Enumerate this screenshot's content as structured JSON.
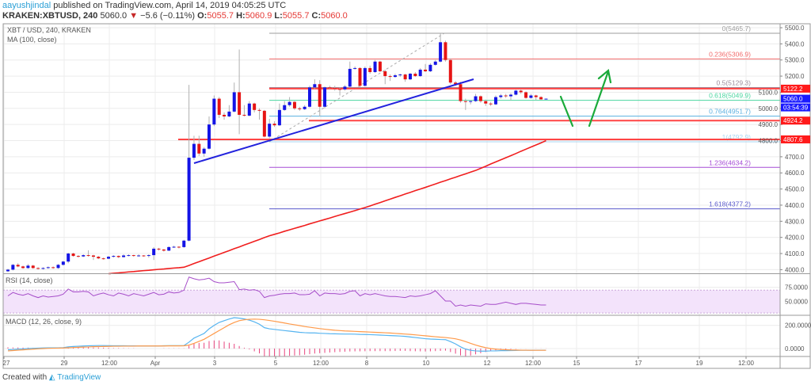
{
  "header": {
    "author": "aayushjindal",
    "published": "published on TradingView.com, April 14, 2019 04:05:25 UTC",
    "symbol": "KRAKEN:XBTUSD, 240",
    "last": "5060.0",
    "change": "−5.6 (−0.11%)",
    "o_label": "O:",
    "o": "5055.7",
    "h_label": "H:",
    "h": "5060.9",
    "l_label": "L:",
    "l": "5055.7",
    "c_label": "C:",
    "c": "5060.0",
    "down_icon": "triangle-down-icon"
  },
  "panes": {
    "main_title": "XBT / USD, 240, KRAKEN",
    "ma_title": "MA (100, close)",
    "rsi_title": "RSI (14, close)",
    "macd_title": "MACD (12, 26, close, 9)"
  },
  "colors": {
    "up": "#1414e6",
    "down": "#e61414",
    "ma": "#f01e1e",
    "trendline": "#2222dd",
    "arrows": "#1aaa3a",
    "rsi": "#a64dc9",
    "rsi_band": "#f3e3fb",
    "macd": "#56b4f0",
    "signal": "#ff9a4a",
    "histogram": "#e8457f",
    "sr_line": "#ff4444"
  },
  "chart_data": {
    "type": "candlestick",
    "interval": "240",
    "price_axis": {
      "ticks": [
        4000,
        4100,
        4200,
        4300,
        4400,
        4500,
        4600,
        4700,
        4800,
        4900,
        5000,
        5100,
        5200,
        5300,
        5400,
        5500
      ],
      "range": [
        3970,
        5540
      ]
    },
    "time_axis": {
      "ticks": [
        "27",
        "29",
        "12:00",
        "Apr",
        "3",
        "5",
        "12:00",
        "8",
        "10",
        "12",
        "12:00",
        "15",
        "17",
        "19",
        "12:00"
      ]
    },
    "ohlc": [
      [
        3990,
        4005,
        3985,
        4000
      ],
      [
        4000,
        4035,
        3995,
        4030
      ],
      [
        4030,
        4040,
        4015,
        4020
      ],
      [
        4020,
        4025,
        4005,
        4010
      ],
      [
        4010,
        4035,
        4005,
        4025
      ],
      [
        4025,
        4030,
        4005,
        4010
      ],
      [
        4010,
        4015,
        4000,
        4005
      ],
      [
        4005,
        4015,
        4000,
        4010
      ],
      [
        4010,
        4020,
        4005,
        4015
      ],
      [
        4015,
        4020,
        4005,
        4010
      ],
      [
        4010,
        4035,
        4005,
        4030
      ],
      [
        4030,
        4055,
        4025,
        4050
      ],
      [
        4050,
        4105,
        4040,
        4100
      ],
      [
        4100,
        4105,
        4080,
        4085
      ],
      [
        4085,
        4090,
        4075,
        4082
      ],
      [
        4082,
        4095,
        4078,
        4090
      ],
      [
        4090,
        4120,
        4080,
        4088
      ],
      [
        4088,
        4092,
        4060,
        4080
      ],
      [
        4080,
        4085,
        4065,
        4070
      ],
      [
        4070,
        4075,
        4062,
        4068
      ],
      [
        4068,
        4085,
        4065,
        4080
      ],
      [
        4080,
        4090,
        4075,
        4085
      ],
      [
        4085,
        4088,
        4072,
        4078
      ],
      [
        4078,
        4095,
        4075,
        4088
      ],
      [
        4088,
        4095,
        4082,
        4090
      ],
      [
        4090,
        4092,
        4080,
        4085
      ],
      [
        4085,
        4095,
        4080,
        4088
      ],
      [
        4088,
        4090,
        4080,
        4085
      ],
      [
        4085,
        4095,
        4075,
        4090
      ],
      [
        4090,
        4140,
        4060,
        4130
      ],
      [
        4130,
        4135,
        4118,
        4125
      ],
      [
        4125,
        4128,
        4112,
        4118
      ],
      [
        4118,
        4145,
        4115,
        4140
      ],
      [
        4140,
        4148,
        4135,
        4142
      ],
      [
        4142,
        4145,
        4132,
        4140
      ],
      [
        4140,
        4185,
        4135,
        4180
      ],
      [
        4180,
        5146,
        4175,
        4694
      ],
      [
        4694,
        4830,
        4680,
        4780
      ],
      [
        4780,
        4830,
        4705,
        4720
      ],
      [
        4720,
        4760,
        4700,
        4750
      ],
      [
        4750,
        4950,
        4745,
        4900
      ],
      [
        4900,
        5080,
        4890,
        5060
      ],
      [
        5060,
        5070,
        4940,
        4960
      ],
      [
        4960,
        4975,
        4930,
        4950
      ],
      [
        4950,
        5020,
        4945,
        4980
      ],
      [
        4980,
        5160,
        4975,
        5100
      ],
      [
        5100,
        5365,
        4840,
        4960
      ],
      [
        4960,
        5020,
        4950,
        4955
      ],
      [
        4955,
        5045,
        4950,
        5030
      ],
      [
        5030,
        5035,
        4975,
        4990
      ],
      [
        4990,
        5000,
        4930,
        4985
      ],
      [
        4985,
        4990,
        4820,
        4825
      ],
      [
        4825,
        4935,
        4815,
        4905
      ],
      [
        4905,
        4920,
        4885,
        4895
      ],
      [
        4895,
        5030,
        4890,
        4990
      ],
      [
        4990,
        5045,
        4985,
        5020
      ],
      [
        5020,
        5070,
        5010,
        5040
      ],
      [
        5040,
        5045,
        4990,
        5000
      ],
      [
        5000,
        5010,
        4985,
        4995
      ],
      [
        4995,
        5020,
        4990,
        5010
      ],
      [
        5010,
        5140,
        5005,
        5130
      ],
      [
        5130,
        5180,
        5120,
        5150
      ],
      [
        5150,
        5175,
        4950,
        5010
      ],
      [
        5010,
        5135,
        5000,
        5130
      ],
      [
        5130,
        5140,
        5115,
        5125
      ],
      [
        5125,
        5140,
        5110,
        5120
      ],
      [
        5120,
        5130,
        5080,
        5118
      ],
      [
        5118,
        5145,
        5110,
        5135
      ],
      [
        5135,
        5290,
        5130,
        5245
      ],
      [
        5245,
        5260,
        5240,
        5250
      ],
      [
        5250,
        5255,
        5130,
        5140
      ],
      [
        5140,
        5260,
        5135,
        5250
      ],
      [
        5250,
        5265,
        5215,
        5225
      ],
      [
        5225,
        5300,
        5220,
        5290
      ],
      [
        5290,
        5295,
        5225,
        5230
      ],
      [
        5230,
        5240,
        5150,
        5200
      ],
      [
        5200,
        5210,
        5170,
        5195
      ],
      [
        5195,
        5215,
        5190,
        5205
      ],
      [
        5205,
        5215,
        5195,
        5210
      ],
      [
        5210,
        5215,
        5165,
        5180
      ],
      [
        5180,
        5220,
        5175,
        5215
      ],
      [
        5215,
        5225,
        5195,
        5200
      ],
      [
        5200,
        5250,
        5195,
        5240
      ],
      [
        5240,
        5275,
        5225,
        5230
      ],
      [
        5230,
        5280,
        5225,
        5270
      ],
      [
        5270,
        5300,
        5265,
        5290
      ],
      [
        5290,
        5465,
        5285,
        5410
      ],
      [
        5410,
        5420,
        5290,
        5300
      ],
      [
        5300,
        5310,
        5150,
        5160
      ],
      [
        5160,
        5170,
        5140,
        5150
      ],
      [
        5150,
        5165,
        5035,
        5045
      ],
      [
        5045,
        5060,
        4990,
        5040
      ],
      [
        5040,
        5050,
        5025,
        5045
      ],
      [
        5045,
        5090,
        5040,
        5075
      ],
      [
        5075,
        5080,
        5035,
        5045
      ],
      [
        5045,
        5055,
        5015,
        5030
      ],
      [
        5030,
        5040,
        5015,
        5025
      ],
      [
        5025,
        5080,
        5020,
        5070
      ],
      [
        5070,
        5090,
        5060,
        5080
      ],
      [
        5080,
        5090,
        5065,
        5075
      ],
      [
        5075,
        5095,
        5050,
        5085
      ],
      [
        5085,
        5115,
        5080,
        5110
      ],
      [
        5110,
        5115,
        5090,
        5100
      ],
      [
        5100,
        5105,
        5060,
        5065
      ],
      [
        5065,
        5090,
        5060,
        5080
      ],
      [
        5080,
        5085,
        5050,
        5070
      ],
      [
        5070,
        5075,
        5055,
        5055.7
      ],
      [
        5055.7,
        5060.9,
        5055.7,
        5060
      ]
    ],
    "ma100": [
      null,
      null,
      null,
      null,
      null,
      null,
      null,
      null,
      null,
      null,
      null,
      null,
      null,
      null,
      null,
      null,
      null,
      null,
      null,
      null,
      3975,
      3978,
      3980,
      3983,
      3986,
      3988,
      3991,
      3994,
      3996,
      3999,
      4002,
      4004,
      4007,
      4010,
      4012,
      4015,
      4026,
      4038,
      4049,
      4061,
      4072,
      4084,
      4095,
      4107,
      4118,
      4130,
      4141,
      4153,
      4164,
      4176,
      4187,
      4199,
      4210,
      4219,
      4228,
      4238,
      4247,
      4256,
      4265,
      4274,
      4284,
      4293,
      4302,
      4311,
      4320,
      4330,
      4339,
      4348,
      4357,
      4366,
      4376,
      4385,
      4395,
      4406,
      4416,
      4427,
      4437,
      4448,
      4458,
      4469,
      4479,
      4490,
      4500,
      4510,
      4521,
      4531,
      4542,
      4552,
      4563,
      4573,
      4584,
      4594,
      4605,
      4615,
      4628,
      4641,
      4655,
      4668,
      4681,
      4694,
      4707,
      4720,
      4734,
      4747,
      4760,
      4773,
      4786,
      4800
    ],
    "fibonacci": [
      {
        "level": "0",
        "value": 5465.7,
        "color": "#9e9e9e"
      },
      {
        "level": "0.236",
        "value": 5306.9,
        "color": "#f26b6b"
      },
      {
        "level": "0.5",
        "value": 5129.3,
        "color": "#9c8c9c"
      },
      {
        "level": "0.618",
        "value": 5049.9,
        "color": "#4cd6a0"
      },
      {
        "level": "0.764",
        "value": 4951.7,
        "color": "#5ab0e0"
      },
      {
        "level": "1",
        "value": 4792.9,
        "color": "#a8d4f2"
      },
      {
        "level": "1.236",
        "value": 4634.2,
        "color": "#a64dd6"
      },
      {
        "level": "1.618",
        "value": 4377.2,
        "color": "#5a5acc"
      }
    ],
    "horizontal_lines": [
      5122.2,
      4924.2,
      4807.6
    ],
    "price_tags": [
      {
        "text": "5122.2",
        "value": 5122.2,
        "color": "#ff1a1a"
      },
      {
        "text": "5060.0",
        "value": 5060.0,
        "color": "#1a1aff"
      },
      {
        "text": "03:54:39",
        "value": 5030,
        "color": "#1a1aff"
      },
      {
        "text": "4924.2",
        "value": 4924.2,
        "color": "#ff1a1a"
      },
      {
        "text": "4807.6",
        "value": 4807.6,
        "color": "#ff1a1a"
      }
    ],
    "rsi": {
      "ticks": [
        "75.0000",
        "50.0000"
      ],
      "band": [
        30,
        70
      ],
      "values": [
        60,
        66,
        63,
        61,
        64,
        60,
        57,
        60,
        58,
        59,
        60,
        63,
        72,
        67,
        67,
        68,
        67,
        60,
        63,
        65,
        62,
        60,
        65,
        63,
        60,
        64,
        62,
        60,
        63,
        66,
        62,
        63,
        67,
        65,
        66,
        70,
        93,
        90,
        88,
        89,
        91,
        85,
        83,
        83,
        84,
        85,
        71,
        72,
        70,
        71,
        68,
        57,
        60,
        61,
        63,
        64,
        64,
        65,
        62,
        62,
        63,
        69,
        60,
        65,
        64,
        64,
        63,
        64,
        68,
        69,
        60,
        64,
        62,
        64,
        62,
        60,
        59,
        59,
        58,
        57,
        60,
        59,
        60,
        62,
        64,
        69,
        60,
        51,
        51,
        42,
        44,
        42,
        44,
        43,
        42,
        46,
        45,
        45,
        47,
        49,
        47,
        45,
        47,
        47,
        46,
        45,
        44,
        44
      ]
    },
    "macd": {
      "ticks": [
        "200.0000",
        "0.0000"
      ],
      "macd": [
        -10,
        -8,
        -5,
        -3,
        0,
        2,
        4,
        5,
        6,
        6,
        6,
        8,
        15,
        18,
        20,
        22,
        24,
        25,
        26,
        26,
        25,
        24,
        24,
        24,
        23,
        23,
        22,
        22,
        22,
        22,
        22,
        24,
        25,
        25,
        25,
        26,
        55,
        90,
        110,
        130,
        170,
        200,
        225,
        240,
        255,
        266,
        262,
        255,
        245,
        230,
        210,
        180,
        170,
        165,
        160,
        155,
        150,
        145,
        140,
        137,
        135,
        135,
        132,
        130,
        128,
        127,
        126,
        125,
        125,
        124,
        122,
        121,
        120,
        118,
        116,
        114,
        112,
        110,
        108,
        105,
        100,
        95,
        90,
        85,
        82,
        80,
        78,
        77,
        60,
        40,
        15,
        -5,
        -15,
        -20,
        -22,
        -22,
        -20,
        -20,
        -18,
        -18,
        -17,
        -16,
        -15,
        -15,
        -15,
        -14,
        -14,
        -14
      ],
      "signal": [
        -20,
        -17,
        -14,
        -11,
        -8,
        -5,
        -2,
        0,
        2,
        3,
        4,
        5,
        7,
        9,
        11,
        13,
        14,
        16,
        17,
        18,
        19,
        20,
        20,
        21,
        21,
        21,
        22,
        22,
        22,
        22,
        22,
        22,
        23,
        23,
        23,
        24,
        30,
        45,
        62,
        80,
        105,
        130,
        155,
        180,
        205,
        225,
        240,
        248,
        252,
        254,
        252,
        248,
        242,
        235,
        228,
        220,
        212,
        205,
        198,
        190,
        184,
        178,
        172,
        167,
        162,
        158,
        155,
        152,
        150,
        148,
        146,
        144,
        142,
        140,
        138,
        136,
        134,
        131,
        128,
        125,
        122,
        118,
        114,
        110,
        106,
        102,
        98,
        95,
        90,
        84,
        74,
        60,
        45,
        30,
        18,
        8,
        0,
        -5,
        -8,
        -10,
        -12,
        -13,
        -14,
        -14,
        -15,
        -15,
        -15,
        -15
      ]
    }
  },
  "footer": {
    "created": "Created with",
    "brand": "TradingView"
  }
}
